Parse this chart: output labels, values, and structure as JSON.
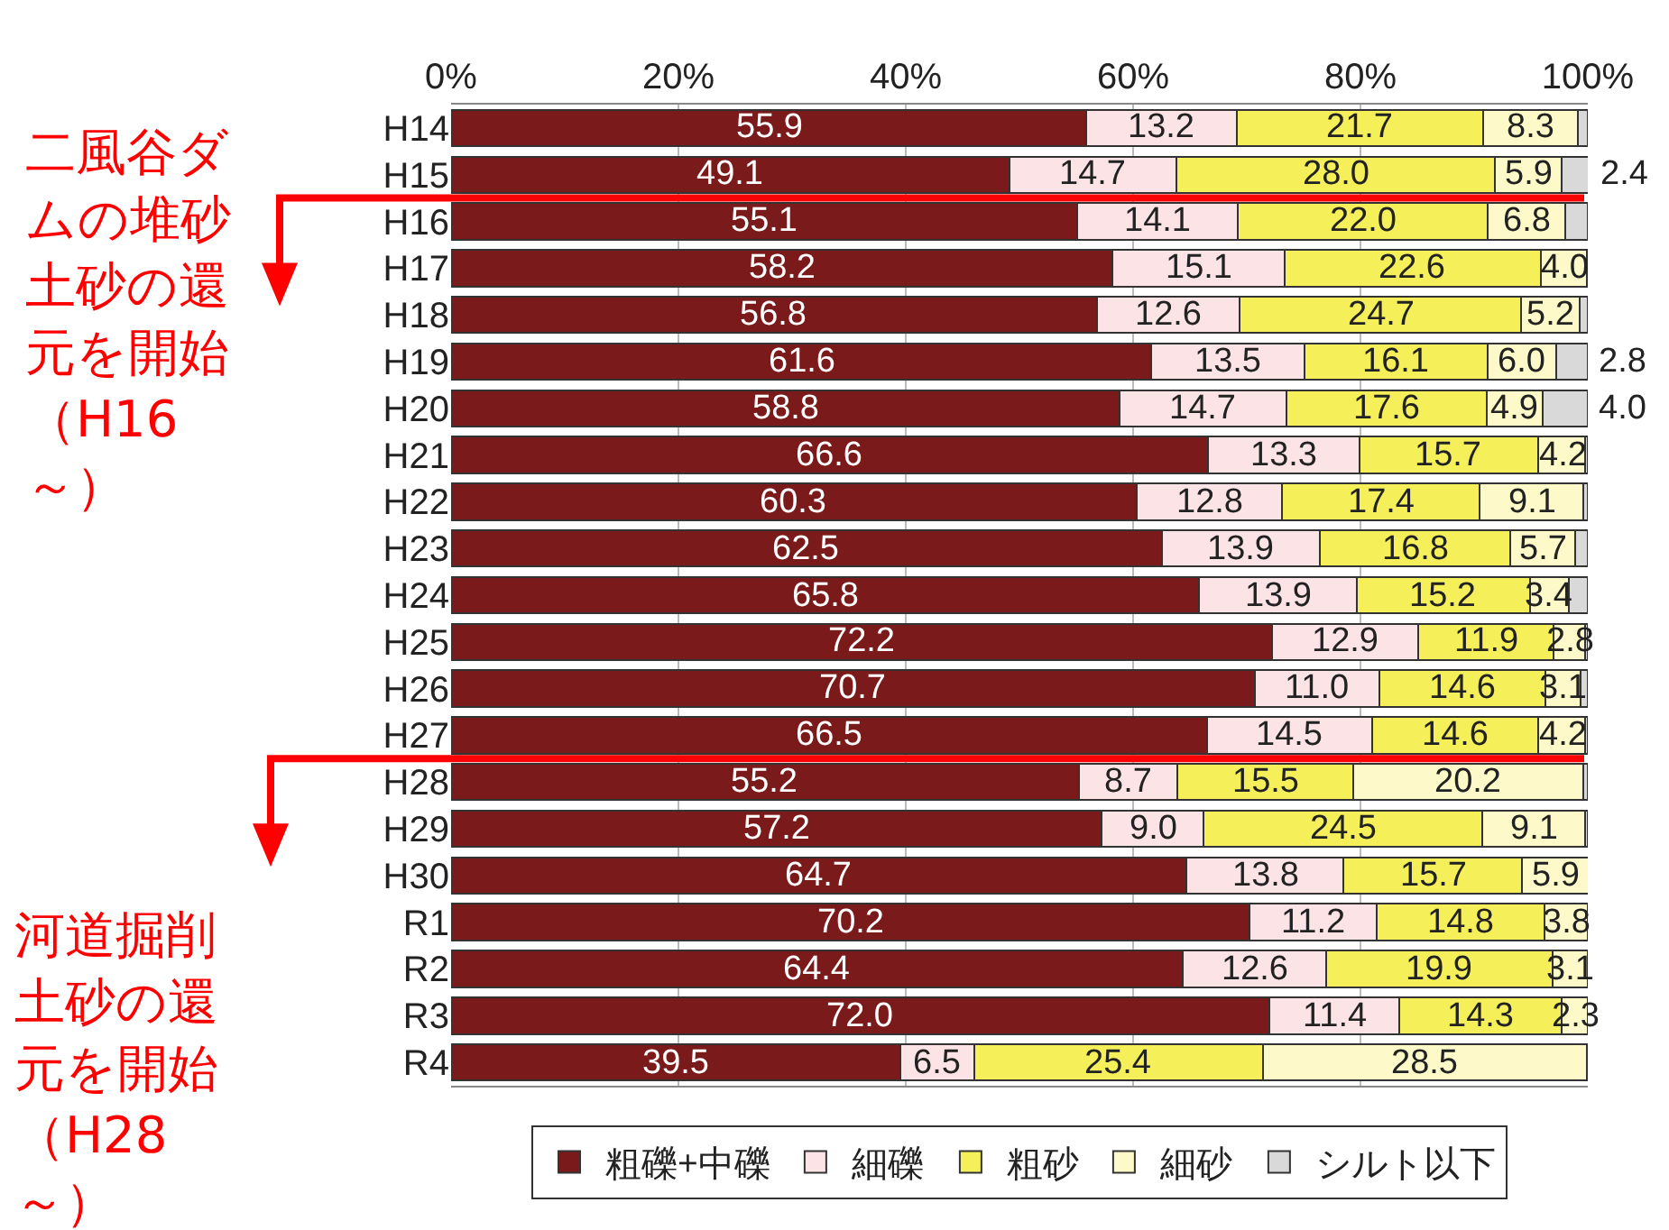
{
  "chart_data": {
    "type": "bar",
    "orientation": "horizontal",
    "stacked": true,
    "categories": [
      "H14",
      "H15",
      "H16",
      "H17",
      "H18",
      "H19",
      "H20",
      "H21",
      "H22",
      "H23",
      "H24",
      "H25",
      "H26",
      "H27",
      "H28",
      "H29",
      "H30",
      "R1",
      "R2",
      "R3",
      "R4"
    ],
    "series": [
      {
        "name": "粗礫+中礫",
        "color": "#7b1a1a",
        "values": [
          55.9,
          49.1,
          55.1,
          58.2,
          56.8,
          61.6,
          58.8,
          66.6,
          60.3,
          62.5,
          65.8,
          72.2,
          70.7,
          66.5,
          55.2,
          57.2,
          64.7,
          70.2,
          64.4,
          72.0,
          39.5
        ],
        "value_labels": [
          "55.9",
          "49.1",
          "55.1",
          "58.2",
          "56.8",
          "61.6",
          "58.8",
          "66.6",
          "60.3",
          "62.5",
          "65.8",
          "72.2",
          "70.7",
          "66.5",
          "55.2",
          "57.2",
          "64.7",
          "70.2",
          "64.4",
          "72.0",
          "39.5"
        ]
      },
      {
        "name": "細礫",
        "color": "#fce4e6",
        "values": [
          13.2,
          14.7,
          14.1,
          15.1,
          12.6,
          13.5,
          14.7,
          13.3,
          12.8,
          13.9,
          13.9,
          12.9,
          11.0,
          14.5,
          8.7,
          9.0,
          13.8,
          11.2,
          12.6,
          11.4,
          6.5
        ],
        "value_labels": [
          "13.2",
          "14.7",
          "14.1",
          "15.1",
          "12.6",
          "13.5",
          "14.7",
          "13.3",
          "12.8",
          "13.9",
          "13.9",
          "12.9",
          "11.0",
          "14.5",
          "8.7",
          "9.0",
          "13.8",
          "11.2",
          "12.6",
          "11.4",
          "6.5"
        ]
      },
      {
        "name": "粗砂",
        "color": "#f5ef5a",
        "values": [
          21.7,
          28.0,
          22.0,
          22.6,
          24.7,
          16.1,
          17.6,
          15.7,
          17.4,
          16.8,
          15.2,
          11.9,
          14.6,
          14.6,
          15.5,
          24.5,
          15.7,
          14.8,
          19.9,
          14.3,
          25.4
        ],
        "value_labels": [
          "21.7",
          "28.0",
          "22.0",
          "22.6",
          "24.7",
          "16.1",
          "17.6",
          "15.7",
          "17.4",
          "16.8",
          "15.2",
          "11.9",
          "14.6",
          "14.6",
          "15.5",
          "24.5",
          "15.7",
          "14.8",
          "19.9",
          "14.3",
          "25.4"
        ]
      },
      {
        "name": "細砂",
        "color": "#fdf9c8",
        "values": [
          8.3,
          5.9,
          6.8,
          4.0,
          5.2,
          6.0,
          4.9,
          4.2,
          9.1,
          5.7,
          3.4,
          2.8,
          3.1,
          4.2,
          20.2,
          9.1,
          5.9,
          3.8,
          3.1,
          2.3,
          28.5
        ],
        "value_labels": [
          "8.3",
          "5.9",
          "6.8",
          "4.0",
          "5.2",
          "6.0",
          "4.9",
          "4.2",
          "9.1",
          "5.7",
          "3.4",
          "2.8",
          "3.1",
          "4.2",
          "20.2",
          "9.1",
          "5.9",
          "3.8",
          "3.1",
          "2.3",
          "28.5"
        ]
      },
      {
        "name": "シルト以下",
        "color": "#d9d9d9",
        "values": [
          0.9,
          2.4,
          2.0,
          0.1,
          0.7,
          2.8,
          4.0,
          0.2,
          0.4,
          1.1,
          1.7,
          0.2,
          0.6,
          0.2,
          0.4,
          0.2,
          null,
          null,
          null,
          null,
          0.1
        ],
        "value_labels": [
          null,
          "2.4",
          null,
          null,
          null,
          "2.8",
          "4.0",
          null,
          null,
          null,
          null,
          null,
          null,
          null,
          null,
          null,
          null,
          null,
          null,
          null,
          null
        ]
      }
    ],
    "xlim": [
      0,
      100
    ],
    "xticks": [
      {
        "value": 0,
        "label": "0%"
      },
      {
        "value": 20,
        "label": "20%"
      },
      {
        "value": 40,
        "label": "40%"
      },
      {
        "value": 60,
        "label": "60%"
      },
      {
        "value": 80,
        "label": "80%"
      },
      {
        "value": 100,
        "label": "100%"
      }
    ],
    "grid": "x",
    "legend": "bottom",
    "annotations": [
      "二風谷ダムの堆砂土砂の還元を開始（H16～）",
      "河道掘削土砂の還元を開始（H28～）"
    ]
  }
}
